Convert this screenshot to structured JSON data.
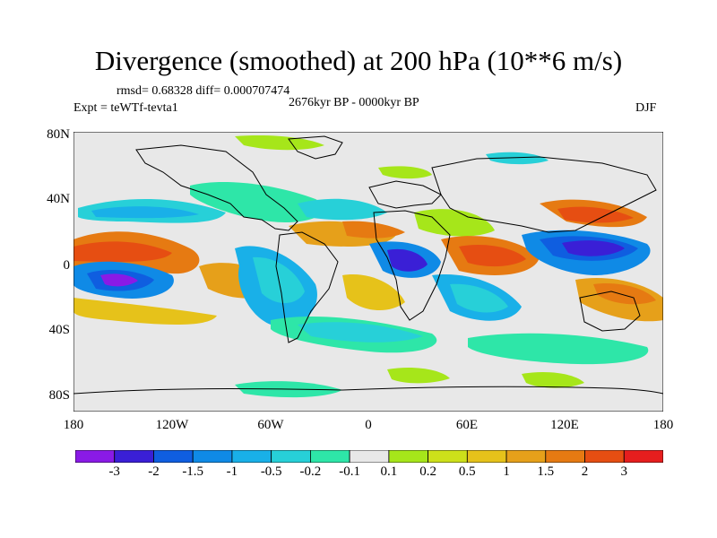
{
  "title": "Divergence (smoothed) at 200 hPa (10**6 m/s)",
  "stats": "rmsd= 0.68328 diff= 0.000707474",
  "experiment": "Expt = teWTf-tevta1",
  "period": "2676kyr BP - 0000kyr BP",
  "season": "DJF",
  "lat_labels": [
    "80N",
    "40N",
    "0",
    "40S",
    "80S"
  ],
  "lon_labels": [
    "180",
    "120W",
    "60W",
    "0",
    "60E",
    "120E",
    "180"
  ],
  "colorbar": {
    "labels": [
      "-3",
      "-2",
      "-1.5",
      "-1",
      "-0.5",
      "-0.2",
      "-0.1",
      "0.1",
      "0.2",
      "0.5",
      "1",
      "1.5",
      "2",
      "3"
    ],
    "colors": [
      "#8a1ae6",
      "#3a1fd6",
      "#0f5ee0",
      "#0f8ae6",
      "#19b0e8",
      "#27d0d8",
      "#2ee6a8",
      "#e8e8e8",
      "#a6e61a",
      "#cde01a",
      "#e6c21a",
      "#e6a01a",
      "#e67a12",
      "#e64e12",
      "#e61e1e"
    ]
  },
  "colors": {
    "land_outline": "#000000",
    "neutral": "#e8e8e8"
  }
}
